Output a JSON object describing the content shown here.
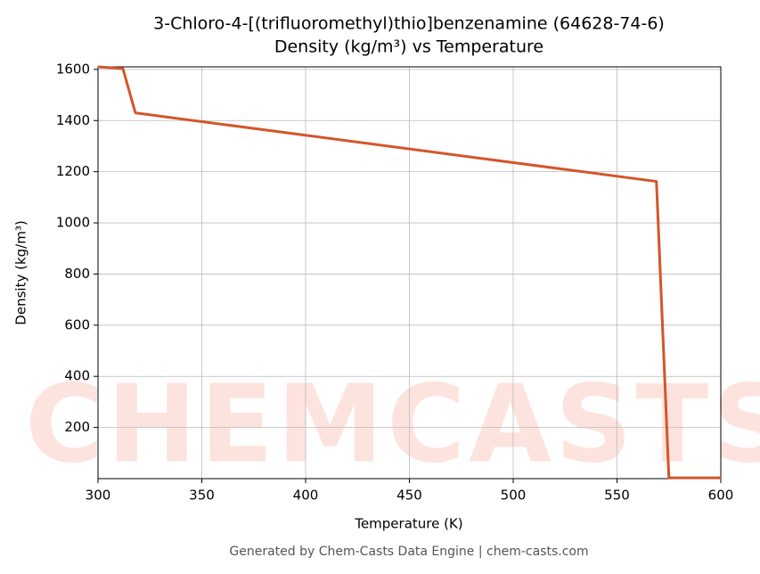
{
  "chart_data": {
    "type": "line",
    "title": "3-Chloro-4-[(trifluoromethyl)thio]benzenamine (64628-74-6)",
    "subtitle": "Density (kg/m³) vs Temperature",
    "x_label": "Temperature (K)",
    "y_label": "Density (kg/m³)",
    "footer": "Generated by Chem-Casts Data Engine | chem-casts.com",
    "watermark": "CHEMCASTS",
    "x": [
      300,
      312,
      318,
      569,
      575,
      600
    ],
    "values": [
      1610,
      1603,
      1430,
      1162,
      3,
      3
    ],
    "color": "#d4552a",
    "xlim": [
      300,
      600
    ],
    "xticks": [
      300,
      350,
      400,
      450,
      500,
      550,
      600
    ],
    "ylim": [
      0,
      1610
    ],
    "yticks": [
      200,
      400,
      600,
      800,
      1000,
      1200,
      1400,
      1600
    ],
    "grid": true
  }
}
